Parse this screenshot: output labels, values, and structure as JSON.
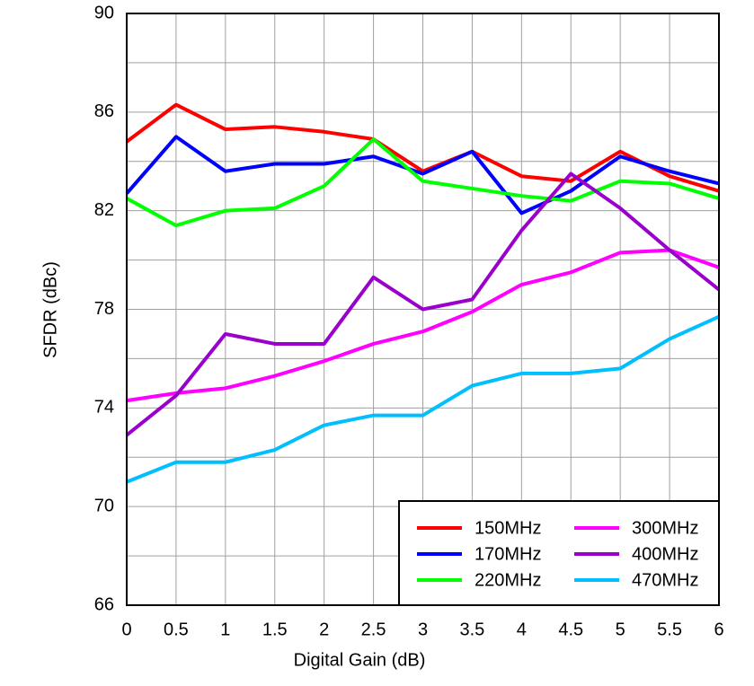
{
  "chart_data": {
    "type": "line",
    "x_label": "Digital Gain (dB)",
    "y_label": "SFDR (dBc)",
    "x": [
      0,
      0.5,
      1,
      1.5,
      2,
      2.5,
      3,
      3.5,
      4,
      4.5,
      5,
      5.5,
      6
    ],
    "xlim": [
      0,
      6
    ],
    "xticks": [
      0,
      0.5,
      1,
      1.5,
      2,
      2.5,
      3,
      3.5,
      4,
      4.5,
      5,
      5.5,
      6
    ],
    "ylim": [
      66,
      90
    ],
    "yticks": [
      66,
      70,
      74,
      78,
      82,
      86,
      90
    ],
    "y_grid_lines": [
      66,
      68,
      70,
      72,
      74,
      76,
      78,
      80,
      82,
      84,
      86,
      88,
      90
    ],
    "grid": true,
    "legend": "lower right",
    "series": [
      {
        "name": "150MHz",
        "color": "#ff0000",
        "values": [
          84.8,
          86.3,
          85.3,
          85.4,
          85.2,
          84.9,
          83.6,
          84.4,
          83.4,
          83.2,
          84.4,
          83.4,
          82.8
        ]
      },
      {
        "name": "170MHz",
        "color": "#0000ff",
        "values": [
          82.7,
          85.0,
          83.6,
          83.9,
          83.9,
          84.2,
          83.5,
          84.4,
          81.9,
          82.8,
          84.2,
          83.6,
          83.1
        ]
      },
      {
        "name": "220MHz",
        "color": "#00ff00",
        "values": [
          82.5,
          81.4,
          82.0,
          82.1,
          83.0,
          84.9,
          83.2,
          82.9,
          82.6,
          82.4,
          83.2,
          83.1,
          82.5
        ]
      },
      {
        "name": "300MHz",
        "color": "#ff00ff",
        "values": [
          74.3,
          74.6,
          74.8,
          75.3,
          75.9,
          76.6,
          77.1,
          77.9,
          79.0,
          79.5,
          80.3,
          80.4,
          79.7
        ]
      },
      {
        "name": "400MHz",
        "color": "#9900cc",
        "values": [
          72.9,
          74.5,
          77.0,
          76.6,
          76.6,
          79.3,
          78.0,
          78.4,
          81.2,
          83.5,
          82.1,
          80.4,
          78.8
        ]
      },
      {
        "name": "470MHz",
        "color": "#00bfff",
        "values": [
          71.0,
          71.8,
          71.8,
          72.3,
          73.3,
          73.7,
          73.7,
          74.9,
          75.4,
          75.4,
          75.6,
          76.8,
          77.7
        ]
      }
    ]
  }
}
